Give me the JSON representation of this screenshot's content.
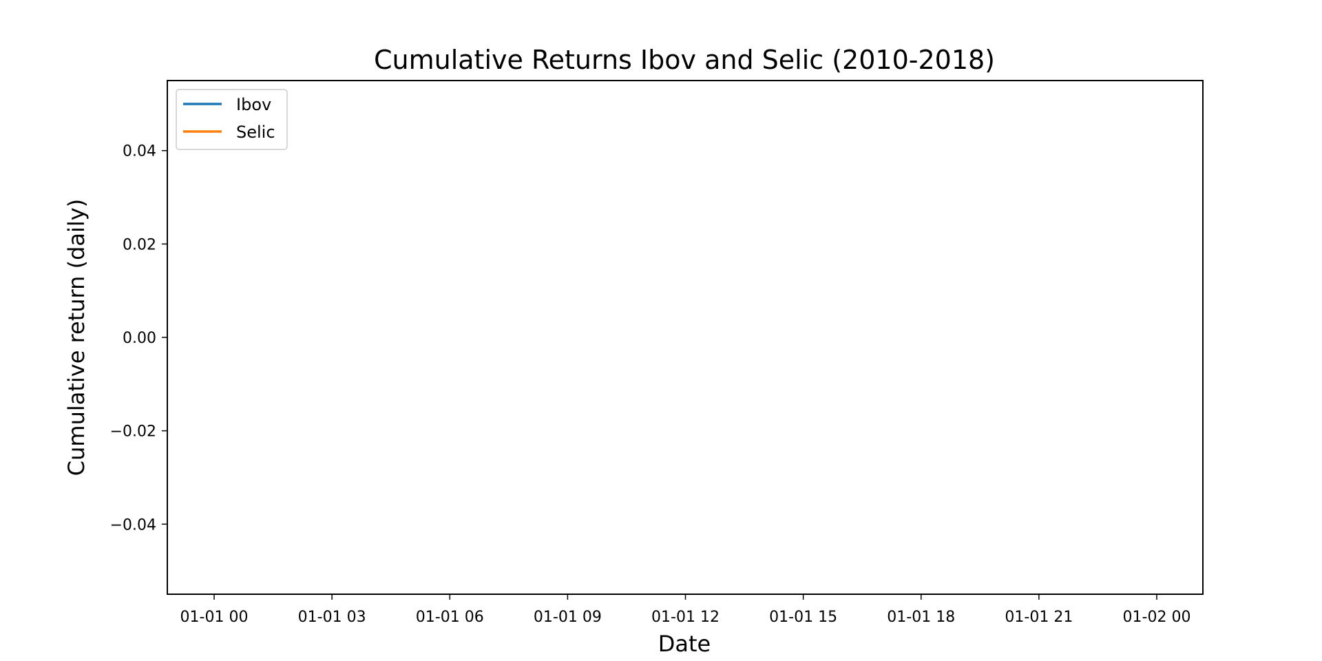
{
  "chart_data": {
    "type": "line",
    "title": "Cumulative Returns Ibov and Selic (2010-2018)",
    "xlabel": "Date",
    "ylabel": "Cumulative return (daily)",
    "x_tick_labels": [
      "01-01 00",
      "01-01 03",
      "01-01 06",
      "01-01 09",
      "01-01 12",
      "01-01 15",
      "01-01 18",
      "01-01 21",
      "01-02 00"
    ],
    "y_ticks": [
      0.04,
      0.02,
      0.0,
      -0.02,
      -0.04
    ],
    "y_tick_labels": [
      "0.04",
      "0.02",
      "0.00",
      "−0.02",
      "−0.04"
    ],
    "ylim": [
      -0.055,
      0.055
    ],
    "grid": false,
    "legend_position": "top-left",
    "series": [
      {
        "name": "Ibov",
        "color": "#1f77b4",
        "values": []
      },
      {
        "name": "Selic",
        "color": "#ff7f0e",
        "values": []
      }
    ]
  }
}
